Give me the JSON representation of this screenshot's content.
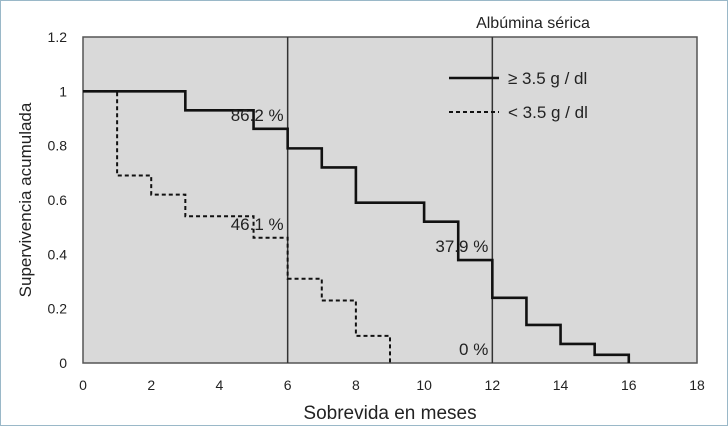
{
  "chart_data": {
    "type": "line",
    "title": "Albúmina sérica",
    "xlabel": "Sobrevida en meses",
    "ylabel": "Supervivencia acumulada",
    "xlim": [
      0,
      18
    ],
    "ylim": [
      0,
      1.2
    ],
    "x_ticks": [
      0,
      2,
      4,
      6,
      8,
      10,
      12,
      14,
      16,
      18
    ],
    "y_ticks": [
      0,
      0.2,
      0.4,
      0.6,
      0.8,
      1,
      1.2
    ],
    "x_tick_labels": [
      "0",
      "2",
      "4",
      "6",
      "8",
      "10",
      "12",
      "14",
      "16",
      "18"
    ],
    "y_tick_labels": [
      "0",
      "0.2",
      "0.4",
      "0.6",
      "0.8",
      "1",
      "1.2"
    ],
    "grid": false,
    "legend_position": "top-right",
    "background_color": "#d9d9d9",
    "series": [
      {
        "name": "≥ 3.5 g / dl",
        "style": "solid",
        "step": true,
        "x": [
          0,
          3,
          5,
          6,
          7,
          8,
          10,
          11,
          12,
          13,
          14,
          15,
          16
        ],
        "y": [
          1.0,
          0.93,
          0.862,
          0.79,
          0.72,
          0.59,
          0.52,
          0.379,
          0.24,
          0.14,
          0.07,
          0.03,
          0.0
        ]
      },
      {
        "name": "< 3.5 g / dl",
        "style": "dashed",
        "step": true,
        "x": [
          0,
          1,
          2,
          3,
          5,
          6,
          7,
          8,
          9
        ],
        "y": [
          1.0,
          0.69,
          0.62,
          0.54,
          0.461,
          0.31,
          0.23,
          0.1,
          0.0
        ]
      }
    ],
    "reference_lines_x": [
      6,
      12
    ],
    "annotations": [
      {
        "text": "86.2 %",
        "x": 6,
        "y": 0.862,
        "anchor": "end"
      },
      {
        "text": "46.1 %",
        "x": 6,
        "y": 0.461,
        "anchor": "end"
      },
      {
        "text": "37.9 %",
        "x": 12,
        "y": 0.379,
        "anchor": "end"
      },
      {
        "text": "0 %",
        "x": 12,
        "y": 0.0,
        "anchor": "end"
      }
    ]
  }
}
